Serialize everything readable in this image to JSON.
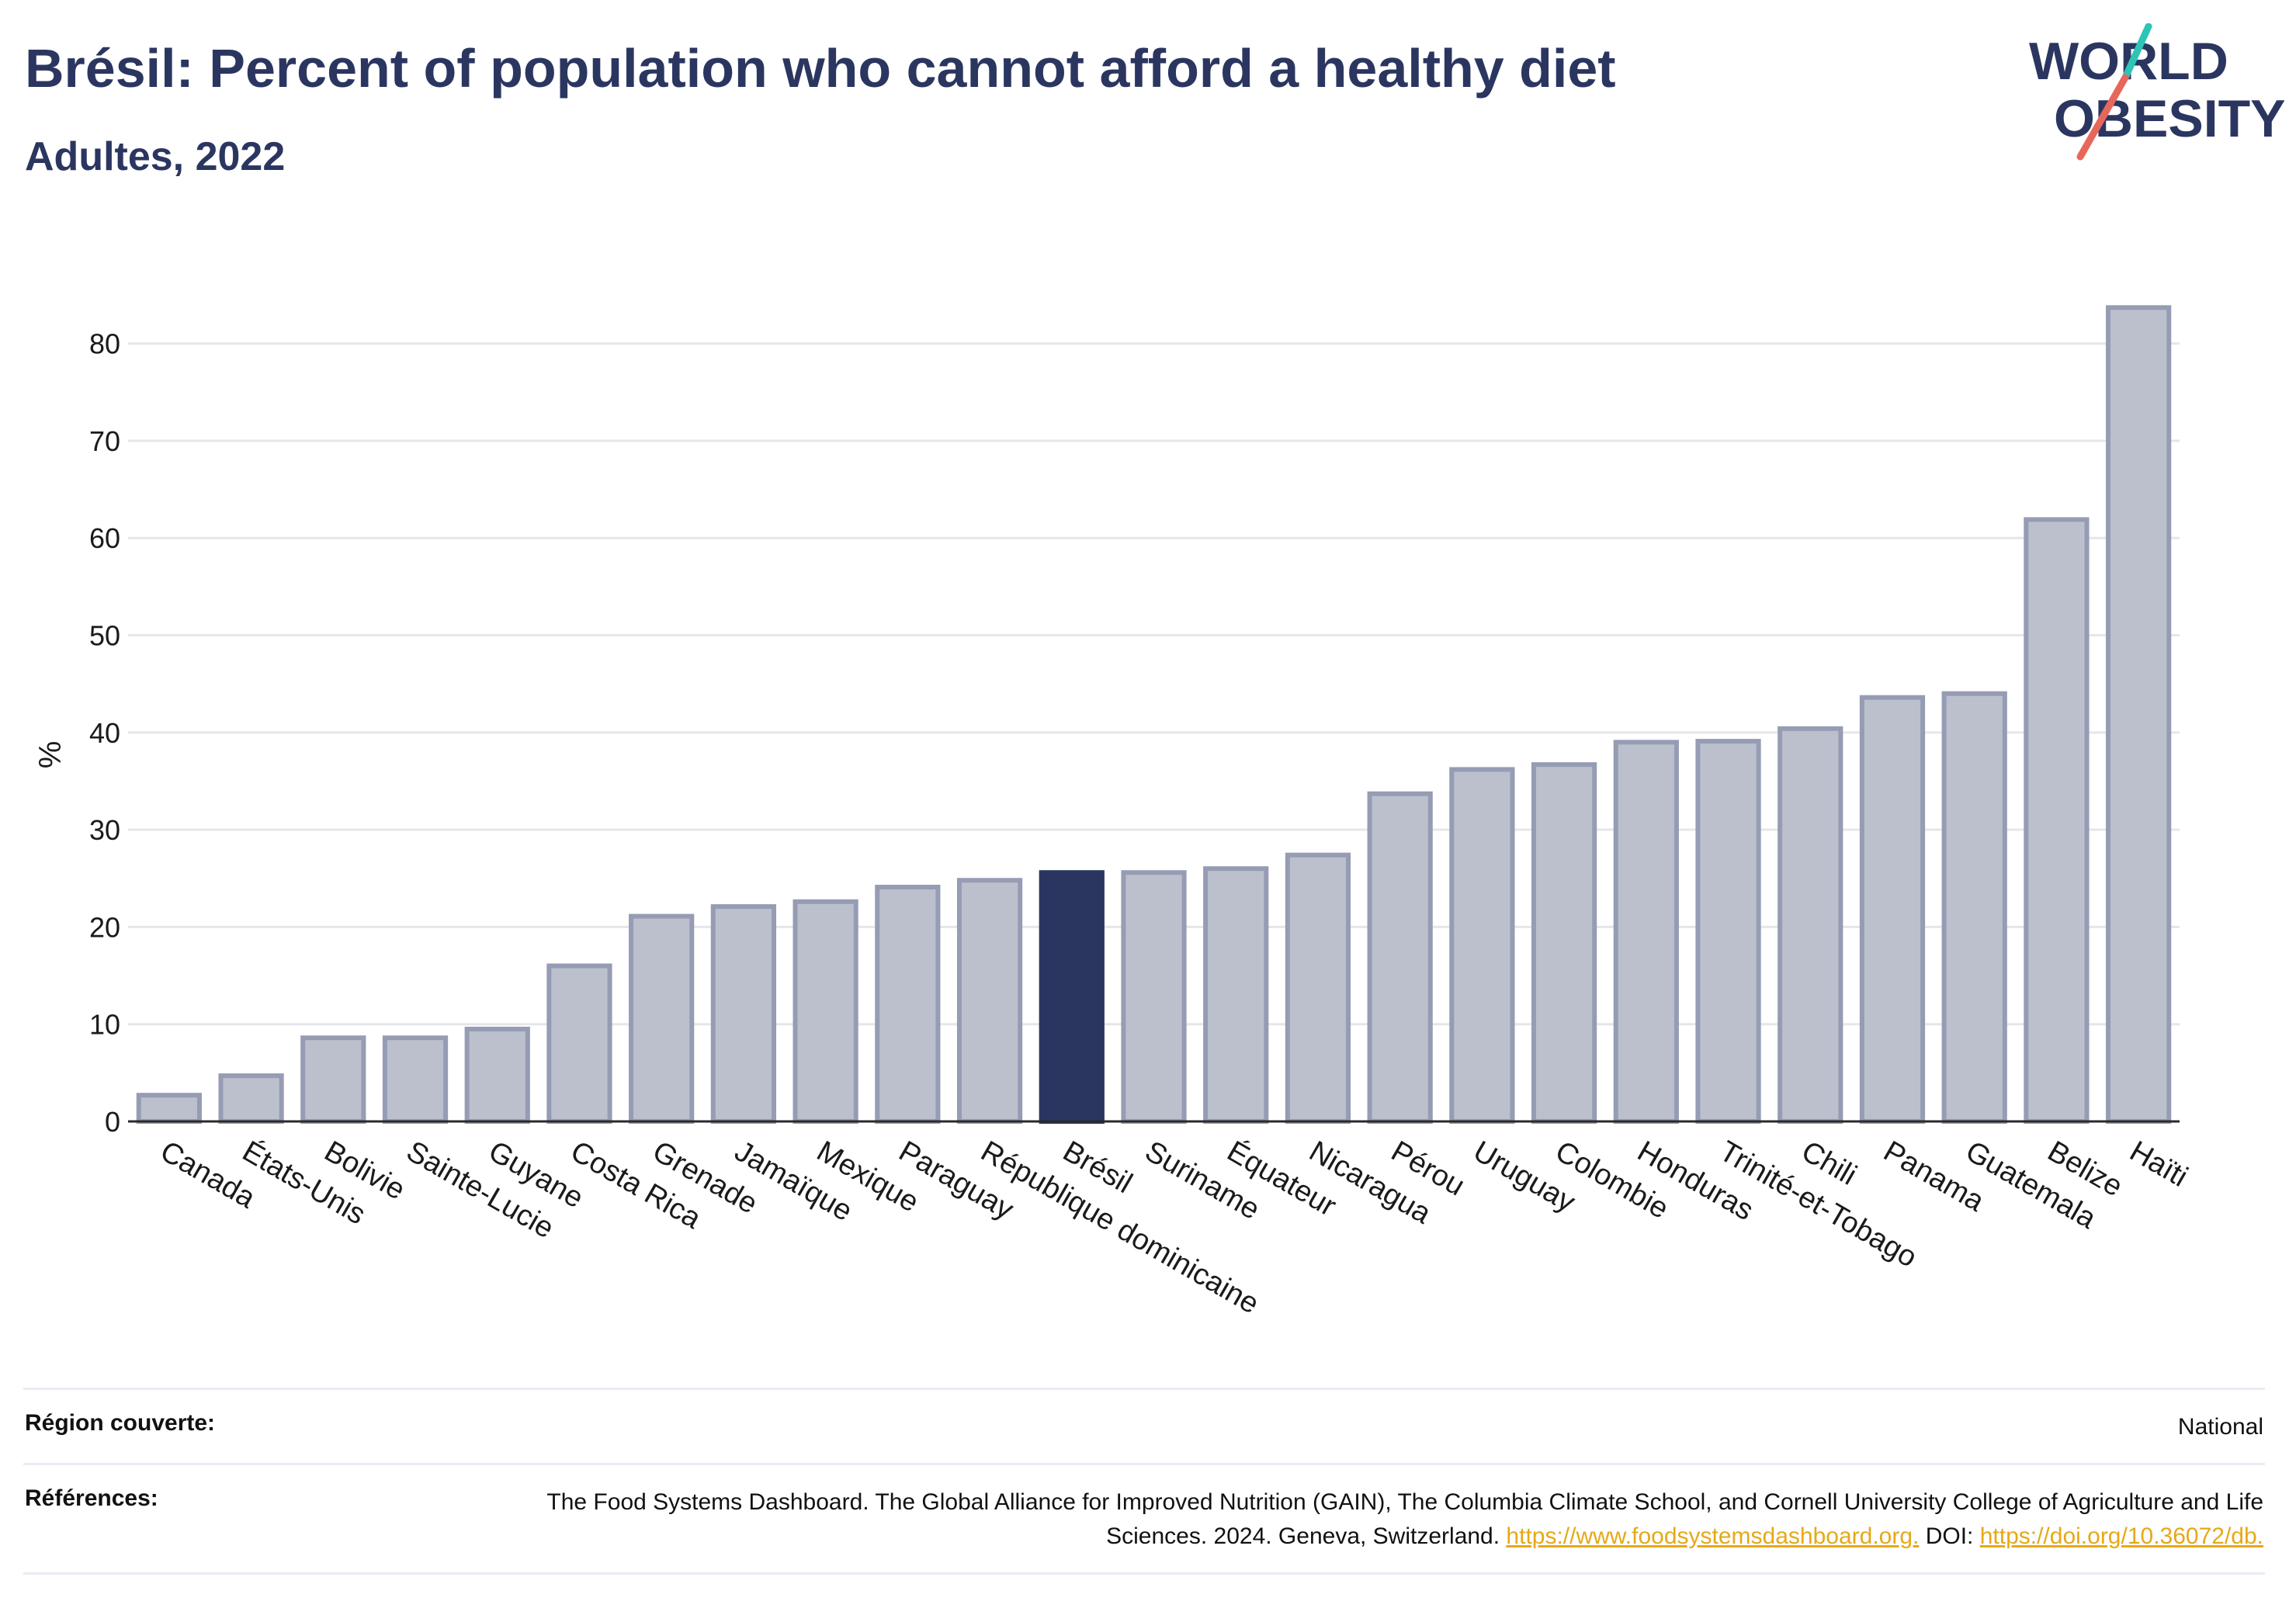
{
  "header": {
    "title": "Brésil: Percent of population who cannot afford a healthy diet",
    "subtitle": "Adultes, 2022"
  },
  "logo": {
    "line1": "WORLD",
    "line2": "OBESITY",
    "colors": {
      "text": "#2b3660",
      "slash_teal": "#2ec4b6",
      "slash_coral": "#e8675b"
    }
  },
  "colors": {
    "bar_fill": "#bcc0cd",
    "bar_stroke": "#959cb3",
    "highlight": "#2b3660",
    "grid": "#e6e6ea",
    "axis": "#2a2a2a"
  },
  "chart_data": {
    "type": "bar",
    "title": "Brésil: Percent of population who cannot afford a healthy diet",
    "subtitle": "Adultes, 2022",
    "xlabel": "",
    "ylabel": "%",
    "ylim": [
      0,
      85
    ],
    "yticks": [
      0,
      10,
      20,
      30,
      40,
      50,
      60,
      70,
      80
    ],
    "grid": true,
    "highlight": "Brésil",
    "categories": [
      "Canada",
      "États-Unis",
      "Bolivie",
      "Sainte-Lucie",
      "Guyane",
      "Costa Rica",
      "Grenade",
      "Jamaïque",
      "Mexique",
      "Paraguay",
      "République dominicaine",
      "Brésil",
      "Suriname",
      "Équateur",
      "Nicaragua",
      "Pérou",
      "Uruguay",
      "Colombie",
      "Honduras",
      "Trinité-et-Tobago",
      "Chili",
      "Panama",
      "Guatemala",
      "Belize",
      "Haïti"
    ],
    "values": [
      2.7,
      4.7,
      8.6,
      8.6,
      9.5,
      16.0,
      21.1,
      22.1,
      22.6,
      24.1,
      24.8,
      25.6,
      25.6,
      26.0,
      27.4,
      33.7,
      36.2,
      36.7,
      39.0,
      39.1,
      40.4,
      43.6,
      44.0,
      61.9,
      83.7
    ]
  },
  "footer": {
    "region_label": "Région couverte:",
    "region_value": "National",
    "references_label": "Références:",
    "references_text": "The Food Systems Dashboard. The Global Alliance for Improved Nutrition (GAIN), The Columbia Climate School, and Cornell University College of Agriculture and Life Sciences. 2024. Geneva, Switzerland.",
    "references_link": "https://www.foodsystemsdashboard.org.",
    "doi_label": "DOI:",
    "doi_link": "https://doi.org/10.36072/db."
  }
}
